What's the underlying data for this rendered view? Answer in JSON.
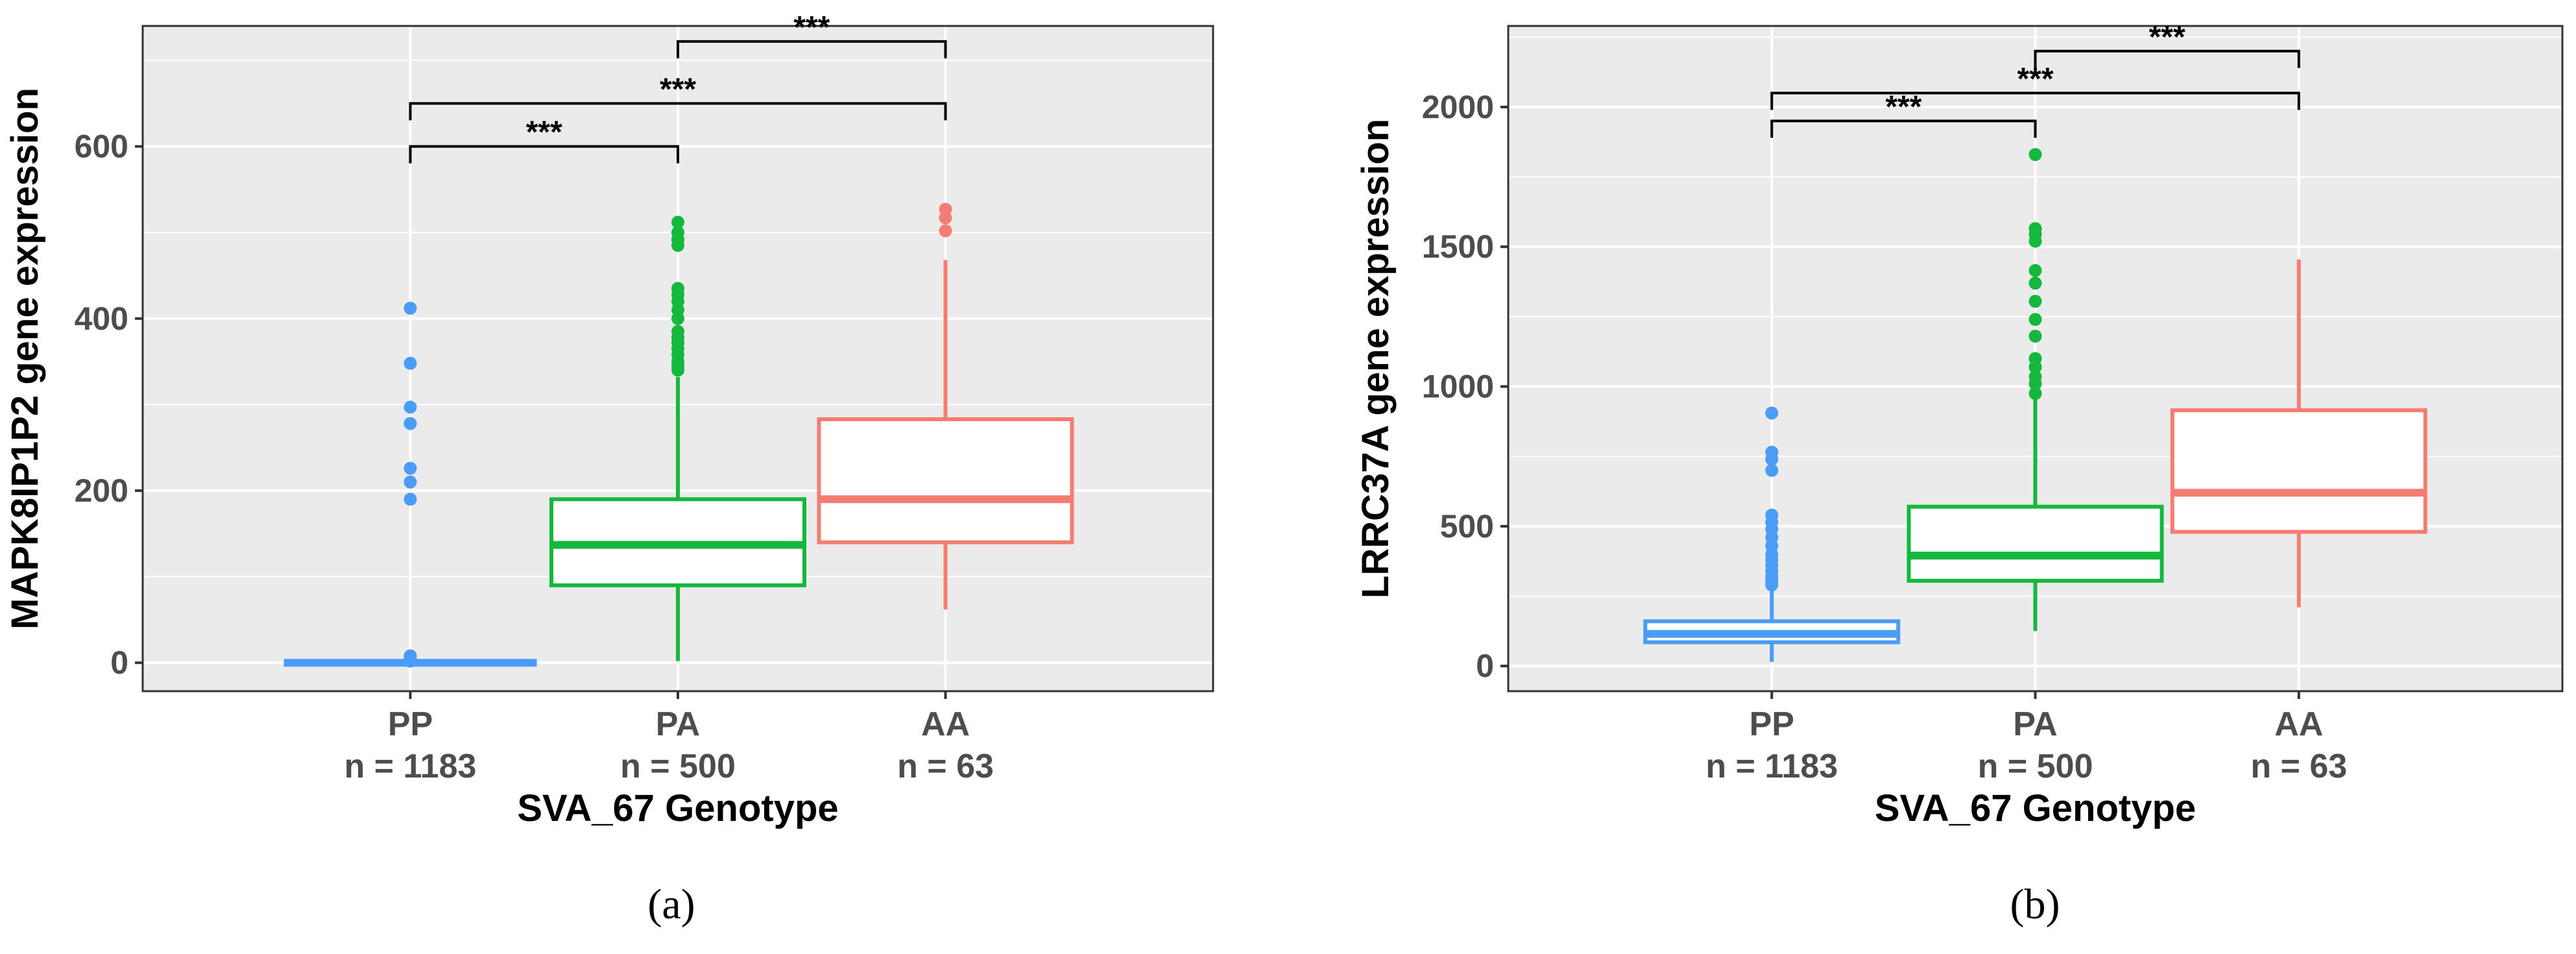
{
  "colors": {
    "panel_bg": "#ebebeb",
    "grid": "#ffffff",
    "PP": "#4A9CF5",
    "PA": "#14B83C",
    "AA": "#F47C72"
  },
  "chart_data": [
    {
      "type": "box",
      "panel_label": "a",
      "panel_label_text": "(a)",
      "xlabel": "SVA_67 Genotype",
      "ylabel": "MAPK8IP1P2 gene expression",
      "ylim": [
        -33,
        740
      ],
      "yticks": [
        0,
        200,
        400,
        600
      ],
      "ytick_labels": [
        "0",
        "200",
        "400",
        "600"
      ],
      "categories": [
        "PP",
        "PA",
        "AA"
      ],
      "counts": [
        "n = 1183",
        "n = 500",
        "n = 63"
      ],
      "boxes": [
        {
          "group": "PP",
          "q1": 0,
          "median": 0,
          "q3": 0,
          "whisker_low": 0,
          "whisker_high": 0,
          "outliers": [
            412,
            348,
            297,
            278,
            226,
            210,
            190,
            8,
            4,
            2
          ]
        },
        {
          "group": "PA",
          "q1": 90,
          "median": 137,
          "q3": 190,
          "whisker_low": 2,
          "whisker_high": 332,
          "outliers": [
            512,
            500,
            492,
            485,
            435,
            428,
            420,
            410,
            400,
            385,
            378,
            372,
            365,
            358,
            350,
            345,
            340
          ]
        },
        {
          "group": "AA",
          "q1": 140,
          "median": 190,
          "q3": 283,
          "whisker_low": 62,
          "whisker_high": 468,
          "outliers": [
            527,
            517,
            502
          ]
        }
      ],
      "comparisons": [
        {
          "from": 1,
          "to": 2,
          "label": "***",
          "y": 722
        },
        {
          "from": 0,
          "to": 2,
          "label": "***",
          "y": 650
        },
        {
          "from": 0,
          "to": 1,
          "label": "***",
          "y": 600
        }
      ]
    },
    {
      "type": "box",
      "panel_label": "b",
      "panel_label_text": "(b)",
      "xlabel": "SVA_67 Genotype",
      "ylabel": "LRRC37A gene expression",
      "ylim": [
        -90,
        2290
      ],
      "yticks": [
        0,
        500,
        1000,
        1500,
        2000
      ],
      "ytick_labels": [
        "0",
        "500",
        "1000",
        "1500",
        "2000"
      ],
      "categories": [
        "PP",
        "PA",
        "AA"
      ],
      "counts": [
        "n = 1183",
        "n = 500",
        "n = 63"
      ],
      "boxes": [
        {
          "group": "PP",
          "q1": 85,
          "median": 115,
          "q3": 160,
          "whisker_low": 15,
          "whisker_high": 270,
          "outliers": [
            905,
            765,
            740,
            700,
            540,
            515,
            490,
            460,
            430,
            400,
            380,
            360,
            340,
            320,
            305,
            290
          ]
        },
        {
          "group": "PA",
          "q1": 305,
          "median": 395,
          "q3": 570,
          "whisker_low": 125,
          "whisker_high": 960,
          "outliers": [
            1830,
            1565,
            1545,
            1520,
            1415,
            1370,
            1305,
            1240,
            1180,
            1100,
            1070,
            1035,
            1010,
            975
          ]
        },
        {
          "group": "AA",
          "q1": 480,
          "median": 620,
          "q3": 915,
          "whisker_low": 210,
          "whisker_high": 1455,
          "outliers": []
        }
      ],
      "comparisons": [
        {
          "from": 1,
          "to": 2,
          "label": "***",
          "y": 2200
        },
        {
          "from": 0,
          "to": 2,
          "label": "***",
          "y": 2050
        },
        {
          "from": 0,
          "to": 1,
          "label": "***",
          "y": 1950
        }
      ]
    }
  ]
}
